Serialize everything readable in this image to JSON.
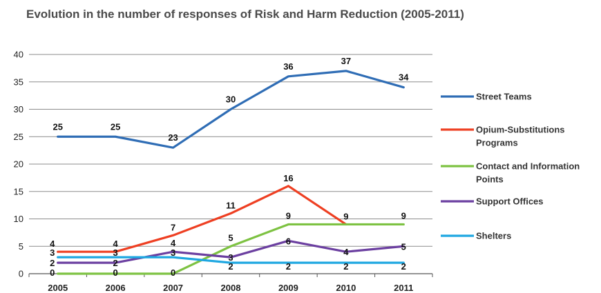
{
  "chart_data": {
    "type": "line",
    "title": "Evolution in the number of responses of Risk and Harm Reduction (2005-2011)",
    "categories": [
      "2005",
      "2006",
      "2007",
      "2008",
      "2009",
      "2010",
      "2011"
    ],
    "ylim": [
      0,
      40
    ],
    "yticks": [
      0,
      5,
      10,
      15,
      20,
      25,
      30,
      35,
      40
    ],
    "grid": true,
    "legend_position": "right",
    "series": [
      {
        "name": "Street Teams",
        "legend_lines": [
          "Street Teams"
        ],
        "color": "#2f6db5",
        "values": [
          25,
          25,
          23,
          30,
          36,
          37,
          34
        ],
        "labels": [
          "25",
          "25",
          "23",
          "30",
          "36",
          "37",
          "34"
        ]
      },
      {
        "name": "Opium-Substitutions Programs",
        "legend_lines": [
          "Opium-Substitutions",
          "Programs"
        ],
        "color": "#ee3f22",
        "values": [
          4,
          4,
          7,
          11,
          16,
          9,
          null
        ],
        "labels": [
          "4",
          "4",
          "7",
          "11",
          "16",
          "9",
          null
        ]
      },
      {
        "name": "Contact and Information Points",
        "legend_lines": [
          "Contact and Information",
          "Points"
        ],
        "color": "#7dc242",
        "values": [
          0,
          0,
          0,
          5,
          9,
          9,
          9
        ],
        "labels": [
          "0",
          "0",
          "0",
          "5",
          "9",
          null,
          "9"
        ]
      },
      {
        "name": "Support Offices",
        "legend_lines": [
          "Support Offices"
        ],
        "color": "#6b3fa0",
        "values": [
          2,
          2,
          4,
          3,
          6,
          4,
          5
        ],
        "labels": [
          "2",
          "2",
          "4",
          "3",
          "6",
          "4",
          "5"
        ]
      },
      {
        "name": "Shelters",
        "legend_lines": [
          "Shelters"
        ],
        "color": "#1ea7e1",
        "values": [
          3,
          3,
          3,
          2,
          2,
          2,
          2
        ],
        "labels": [
          "3",
          "3",
          "3",
          "2",
          "2",
          "2",
          "2"
        ]
      }
    ]
  }
}
